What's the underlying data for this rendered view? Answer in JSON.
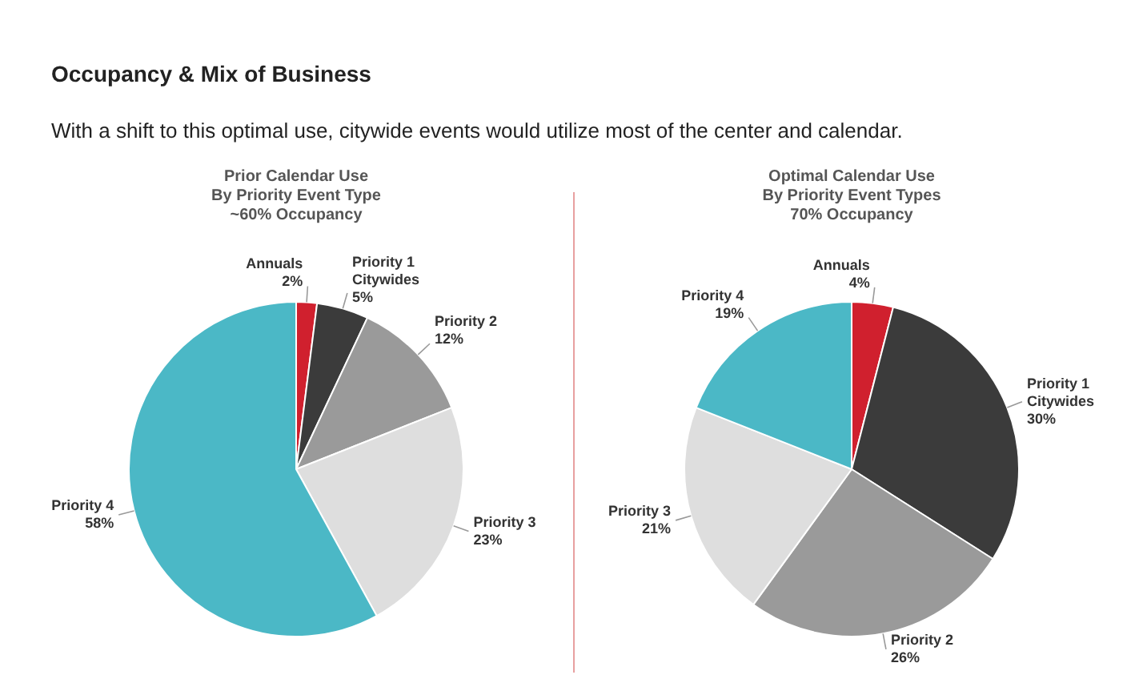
{
  "chart_data": [
    {
      "type": "pie",
      "title": "Prior Calendar Use\nBy Priority Event Type\n~60% Occupancy",
      "annotations": [
        "Occupancy & Mix of Business",
        "With a shift to this optimal use, citywide events would utilize most of the center and calendar."
      ],
      "categories": [
        "Annuals",
        "Priority 1\nCitywides",
        "Priority 2",
        "Priority 3",
        "Priority 4"
      ],
      "values": [
        2,
        5,
        12,
        23,
        58
      ],
      "value_labels": [
        "2%",
        "5%",
        "12%",
        "23%",
        "58%"
      ],
      "colors": [
        "#d0202e",
        "#3b3b3b",
        "#9a9a9a",
        "#dedede",
        "#4bb8c6"
      ]
    },
    {
      "type": "pie",
      "title": "Optimal Calendar Use\nBy Priority Event Types\n70% Occupancy",
      "categories": [
        "Annuals",
        "Priority 1\nCitywides",
        "Priority 2",
        "Priority 3",
        "Priority 4"
      ],
      "values": [
        4,
        30,
        26,
        21,
        19
      ],
      "value_labels": [
        "4%",
        "30%",
        "26%",
        "21%",
        "19%"
      ],
      "colors": [
        "#d0202e",
        "#3b3b3b",
        "#9a9a9a",
        "#dedede",
        "#4bb8c6"
      ]
    }
  ]
}
